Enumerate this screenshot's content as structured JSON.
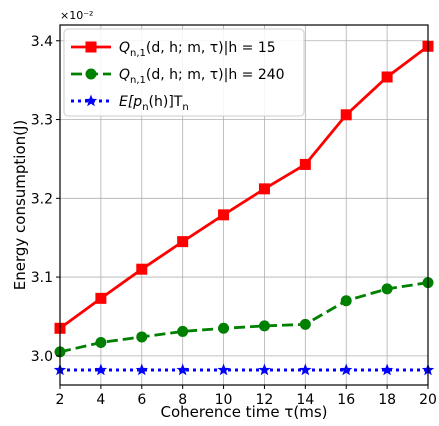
{
  "chart_data": {
    "type": "line",
    "title": "",
    "xlabel": "Coherence time τ(ms)",
    "ylabel": "Energy consumption(J)",
    "y_multiplier": "×10⁻²",
    "x_ticks": [
      2,
      4,
      6,
      8,
      10,
      12,
      14,
      16,
      18,
      20
    ],
    "y_ticks": [
      3.0,
      3.1,
      3.2,
      3.3,
      3.4
    ],
    "y_tick_labels": [
      "3.0",
      "3.1",
      "3.2",
      "3.3",
      "3.4"
    ],
    "xlim": [
      2,
      20
    ],
    "ylim": [
      2.963,
      3.42
    ],
    "grid": true,
    "legend_position": "top-left",
    "x": [
      2,
      4,
      6,
      8,
      10,
      12,
      14,
      16,
      18,
      20
    ],
    "series": [
      {
        "name": "Q_{n,1}(d,h;m,τ)|h = 15",
        "legend": {
          "base": "Q",
          "sub": "n,1",
          "rest": "(d, h; m, τ)|h = 15"
        },
        "values": [
          3.035,
          3.073,
          3.11,
          3.145,
          3.179,
          3.212,
          3.243,
          3.306,
          3.354,
          3.393
        ],
        "color": "#ff0000",
        "marker": "square",
        "line_style": "solid"
      },
      {
        "name": "Q_{n,1}(d,h;m,τ)|h = 240",
        "legend": {
          "base": "Q",
          "sub": "n,1",
          "rest": "(d, h; m, τ)|h = 240"
        },
        "values": [
          3.005,
          3.017,
          3.024,
          3.031,
          3.035,
          3.038,
          3.04,
          3.07,
          3.085,
          3.093
        ],
        "color": "#008000",
        "marker": "circle",
        "line_style": "dashed"
      },
      {
        "name": "E[p_n(h)]T_n",
        "legend": {
          "base": "E[p",
          "sub": "n",
          "rest": "(h)]T",
          "sub2": "n"
        },
        "values": [
          2.982,
          2.982,
          2.982,
          2.982,
          2.982,
          2.982,
          2.982,
          2.982,
          2.982,
          2.982
        ],
        "color": "#0000ff",
        "marker": "star",
        "line_style": "dotted"
      }
    ]
  }
}
